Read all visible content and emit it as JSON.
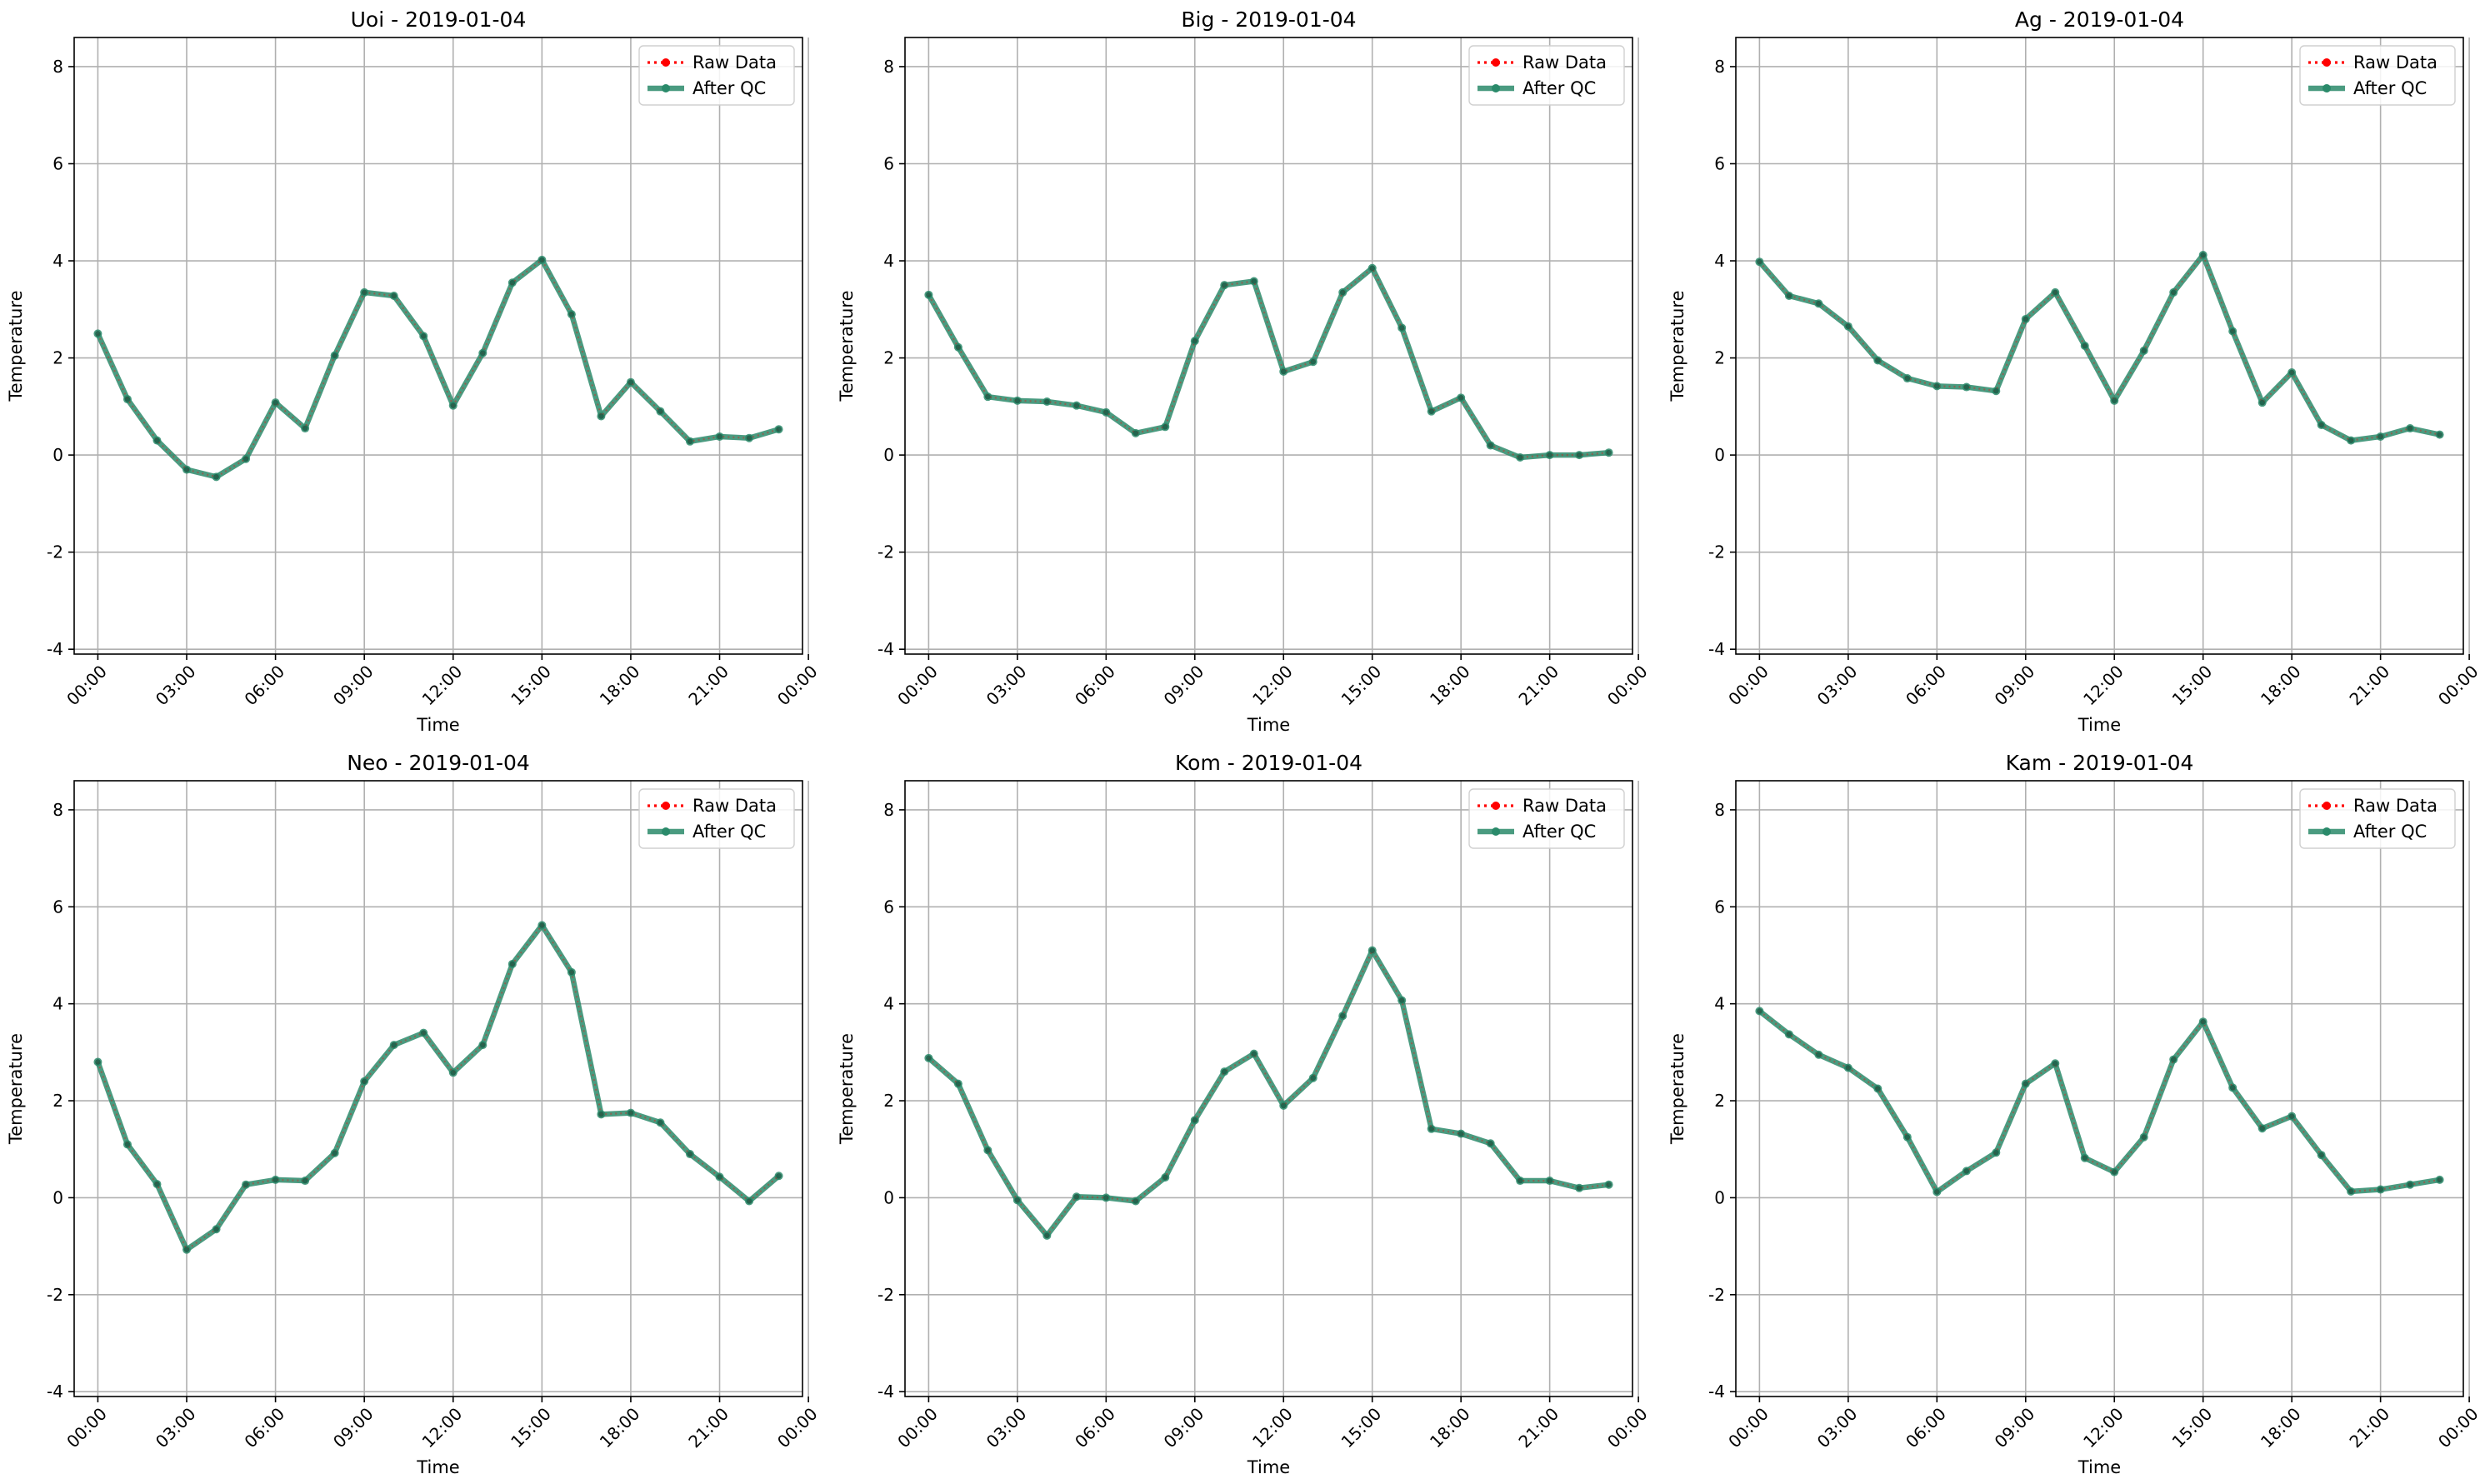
{
  "figure": {
    "background": "#ffffff"
  },
  "colors": {
    "raw": "#ff0000",
    "qc": "#2a8a6a",
    "grid": "#b0b0b0",
    "axes": "#000000"
  },
  "chart_data": [
    {
      "type": "line",
      "title": "Uoi - 2019-01-04",
      "xlabel": "Time",
      "ylabel": "Temperature",
      "ylim": [
        -4.1,
        8.6
      ],
      "yticks": [
        -4,
        -2,
        0,
        2,
        4,
        6,
        8
      ],
      "xlim": [
        -0.8,
        23.8
      ],
      "xtick_positions": [
        0,
        3,
        6,
        9,
        12,
        15,
        18,
        21,
        24
      ],
      "xtick_labels": [
        "00:00",
        "03:00",
        "06:00",
        "09:00",
        "12:00",
        "15:00",
        "18:00",
        "21:00",
        "00:00"
      ],
      "grid": true,
      "legend_location": "upper right",
      "x": [
        0,
        1,
        2,
        3,
        4,
        5,
        6,
        7,
        8,
        9,
        10,
        11,
        12,
        13,
        14,
        15,
        16,
        17,
        18,
        19,
        20,
        21,
        22,
        23
      ],
      "series": [
        {
          "name": "Raw Data",
          "style": "dotted-line-with-markers",
          "values": [
            2.5,
            1.15,
            0.3,
            -0.3,
            -0.45,
            -0.08,
            1.08,
            0.55,
            2.05,
            3.35,
            3.28,
            2.45,
            1.02,
            2.1,
            3.55,
            4.02,
            2.9,
            0.8,
            1.5,
            0.9,
            0.28,
            0.38,
            0.35,
            0.53
          ]
        },
        {
          "name": "After QC",
          "style": "solid-line-with-markers",
          "values": [
            2.5,
            1.15,
            0.3,
            -0.3,
            -0.45,
            -0.08,
            1.08,
            0.55,
            2.05,
            3.35,
            3.28,
            2.45,
            1.02,
            2.1,
            3.55,
            4.02,
            2.9,
            0.8,
            1.5,
            0.9,
            0.28,
            0.38,
            0.35,
            0.53
          ]
        }
      ]
    },
    {
      "type": "line",
      "title": "Big - 2019-01-04",
      "xlabel": "Time",
      "ylabel": "Temperature",
      "ylim": [
        -4.1,
        8.6
      ],
      "yticks": [
        -4,
        -2,
        0,
        2,
        4,
        6,
        8
      ],
      "xlim": [
        -0.8,
        23.8
      ],
      "xtick_positions": [
        0,
        3,
        6,
        9,
        12,
        15,
        18,
        21,
        24
      ],
      "xtick_labels": [
        "00:00",
        "03:00",
        "06:00",
        "09:00",
        "12:00",
        "15:00",
        "18:00",
        "21:00",
        "00:00"
      ],
      "grid": true,
      "legend_location": "upper right",
      "x": [
        0,
        1,
        2,
        3,
        4,
        5,
        6,
        7,
        8,
        9,
        10,
        11,
        12,
        13,
        14,
        15,
        16,
        17,
        18,
        19,
        20,
        21,
        22,
        23
      ],
      "series": [
        {
          "name": "Raw Data",
          "style": "dotted-line-with-markers",
          "values": [
            3.3,
            2.22,
            1.2,
            1.12,
            1.1,
            1.02,
            0.88,
            0.45,
            0.58,
            2.35,
            3.5,
            3.58,
            1.72,
            1.92,
            3.35,
            3.85,
            2.62,
            0.9,
            1.18,
            0.2,
            -0.05,
            0.0,
            0.0,
            0.05
          ]
        },
        {
          "name": "After QC",
          "style": "solid-line-with-markers",
          "values": [
            3.3,
            2.22,
            1.2,
            1.12,
            1.1,
            1.02,
            0.88,
            0.45,
            0.58,
            2.35,
            3.5,
            3.58,
            1.72,
            1.92,
            3.35,
            3.85,
            2.62,
            0.9,
            1.18,
            0.2,
            -0.05,
            0.0,
            0.0,
            0.05
          ]
        }
      ]
    },
    {
      "type": "line",
      "title": "Ag - 2019-01-04",
      "xlabel": "Time",
      "ylabel": "Temperature",
      "ylim": [
        -4.1,
        8.6
      ],
      "yticks": [
        -4,
        -2,
        0,
        2,
        4,
        6,
        8
      ],
      "xlim": [
        -0.8,
        23.8
      ],
      "xtick_positions": [
        0,
        3,
        6,
        9,
        12,
        15,
        18,
        21,
        24
      ],
      "xtick_labels": [
        "00:00",
        "03:00",
        "06:00",
        "09:00",
        "12:00",
        "15:00",
        "18:00",
        "21:00",
        "00:00"
      ],
      "grid": true,
      "legend_location": "upper right",
      "x": [
        0,
        1,
        2,
        3,
        4,
        5,
        6,
        7,
        8,
        9,
        10,
        11,
        12,
        13,
        14,
        15,
        16,
        17,
        18,
        19,
        20,
        21,
        22,
        23
      ],
      "series": [
        {
          "name": "Raw Data",
          "style": "dotted-line-with-markers",
          "values": [
            3.98,
            3.28,
            3.12,
            2.65,
            1.95,
            1.58,
            1.42,
            1.4,
            1.32,
            2.8,
            3.35,
            2.25,
            1.12,
            2.15,
            3.35,
            4.12,
            2.55,
            1.08,
            1.7,
            0.62,
            0.3,
            0.38,
            0.55,
            0.42
          ]
        },
        {
          "name": "After QC",
          "style": "solid-line-with-markers",
          "values": [
            3.98,
            3.28,
            3.12,
            2.65,
            1.95,
            1.58,
            1.42,
            1.4,
            1.32,
            2.8,
            3.35,
            2.25,
            1.12,
            2.15,
            3.35,
            4.12,
            2.55,
            1.08,
            1.7,
            0.62,
            0.3,
            0.38,
            0.55,
            0.42
          ]
        }
      ]
    },
    {
      "type": "line",
      "title": "Neo - 2019-01-04",
      "xlabel": "Time",
      "ylabel": "Temperature",
      "ylim": [
        -4.1,
        8.6
      ],
      "yticks": [
        -4,
        -2,
        0,
        2,
        4,
        6,
        8
      ],
      "xlim": [
        -0.8,
        23.8
      ],
      "xtick_positions": [
        0,
        3,
        6,
        9,
        12,
        15,
        18,
        21,
        24
      ],
      "xtick_labels": [
        "00:00",
        "03:00",
        "06:00",
        "09:00",
        "12:00",
        "15:00",
        "18:00",
        "21:00",
        "00:00"
      ],
      "grid": true,
      "legend_location": "upper right",
      "x": [
        0,
        1,
        2,
        3,
        4,
        5,
        6,
        7,
        8,
        9,
        10,
        11,
        12,
        13,
        14,
        15,
        16,
        17,
        18,
        19,
        20,
        21,
        22,
        23
      ],
      "series": [
        {
          "name": "Raw Data",
          "style": "dotted-line-with-markers",
          "values": [
            2.8,
            1.1,
            0.28,
            -1.07,
            -0.65,
            0.27,
            0.37,
            0.35,
            0.92,
            2.4,
            3.15,
            3.4,
            2.58,
            3.15,
            4.82,
            5.62,
            4.65,
            1.72,
            1.75,
            1.55,
            0.9,
            0.43,
            -0.07,
            0.45
          ]
        },
        {
          "name": "After QC",
          "style": "solid-line-with-markers",
          "values": [
            2.8,
            1.1,
            0.28,
            -1.07,
            -0.65,
            0.27,
            0.37,
            0.35,
            0.92,
            2.4,
            3.15,
            3.4,
            2.58,
            3.15,
            4.82,
            5.62,
            4.65,
            1.72,
            1.75,
            1.55,
            0.9,
            0.43,
            -0.07,
            0.45
          ]
        }
      ]
    },
    {
      "type": "line",
      "title": "Kom - 2019-01-04",
      "xlabel": "Time",
      "ylabel": "Temperature",
      "ylim": [
        -4.1,
        8.6
      ],
      "yticks": [
        -4,
        -2,
        0,
        2,
        4,
        6,
        8
      ],
      "xlim": [
        -0.8,
        23.8
      ],
      "xtick_positions": [
        0,
        3,
        6,
        9,
        12,
        15,
        18,
        21,
        24
      ],
      "xtick_labels": [
        "00:00",
        "03:00",
        "06:00",
        "09:00",
        "12:00",
        "15:00",
        "18:00",
        "21:00",
        "00:00"
      ],
      "grid": true,
      "legend_location": "upper right",
      "x": [
        0,
        1,
        2,
        3,
        4,
        5,
        6,
        7,
        8,
        9,
        10,
        11,
        12,
        13,
        14,
        15,
        16,
        17,
        18,
        19,
        20,
        21,
        22,
        23
      ],
      "series": [
        {
          "name": "Raw Data",
          "style": "dotted-line-with-markers",
          "values": [
            2.88,
            2.35,
            0.98,
            -0.05,
            -0.78,
            0.02,
            0.0,
            -0.07,
            0.42,
            1.6,
            2.6,
            2.97,
            1.9,
            2.47,
            3.75,
            5.1,
            4.07,
            1.42,
            1.32,
            1.12,
            0.35,
            0.35,
            0.2,
            0.27
          ]
        },
        {
          "name": "After QC",
          "style": "solid-line-with-markers",
          "values": [
            2.88,
            2.35,
            0.98,
            -0.05,
            -0.78,
            0.02,
            0.0,
            -0.07,
            0.42,
            1.6,
            2.6,
            2.97,
            1.9,
            2.47,
            3.75,
            5.1,
            4.07,
            1.42,
            1.32,
            1.12,
            0.35,
            0.35,
            0.2,
            0.27
          ]
        }
      ]
    },
    {
      "type": "line",
      "title": "Kam - 2019-01-04",
      "xlabel": "Time",
      "ylabel": "Temperature",
      "ylim": [
        -4.1,
        8.6
      ],
      "yticks": [
        -4,
        -2,
        0,
        2,
        4,
        6,
        8
      ],
      "xlim": [
        -0.8,
        23.8
      ],
      "xtick_positions": [
        0,
        3,
        6,
        9,
        12,
        15,
        18,
        21,
        24
      ],
      "xtick_labels": [
        "00:00",
        "03:00",
        "06:00",
        "09:00",
        "12:00",
        "15:00",
        "18:00",
        "21:00",
        "00:00"
      ],
      "grid": true,
      "legend_location": "upper right",
      "x": [
        0,
        1,
        2,
        3,
        4,
        5,
        6,
        7,
        8,
        9,
        10,
        11,
        12,
        13,
        14,
        15,
        16,
        17,
        18,
        19,
        20,
        21,
        22,
        23
      ],
      "series": [
        {
          "name": "Raw Data",
          "style": "dotted-line-with-markers",
          "values": [
            3.85,
            3.37,
            2.95,
            2.68,
            2.25,
            1.25,
            0.12,
            0.55,
            0.93,
            2.35,
            2.77,
            0.82,
            0.53,
            1.25,
            2.85,
            3.63,
            2.27,
            1.43,
            1.68,
            0.88,
            0.13,
            0.17,
            0.27,
            0.37
          ]
        },
        {
          "name": "After QC",
          "style": "solid-line-with-markers",
          "values": [
            3.85,
            3.37,
            2.95,
            2.68,
            2.25,
            1.25,
            0.12,
            0.55,
            0.93,
            2.35,
            2.77,
            0.82,
            0.53,
            1.25,
            2.85,
            3.63,
            2.27,
            1.43,
            1.68,
            0.88,
            0.13,
            0.17,
            0.27,
            0.37
          ]
        }
      ]
    }
  ]
}
